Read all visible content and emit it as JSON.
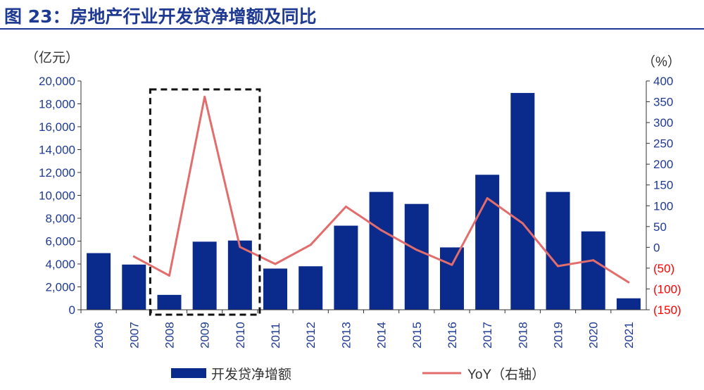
{
  "figure_title": "图 23：房地产行业开发贷净增额及同比",
  "chart_data": {
    "type": "bar",
    "categories": [
      "2006",
      "2007",
      "2008",
      "2009",
      "2010",
      "2011",
      "2012",
      "2013",
      "2014",
      "2015",
      "2016",
      "2017",
      "2018",
      "2019",
      "2020",
      "2021"
    ],
    "series": [
      {
        "name": "开发贷净增额",
        "type": "bar",
        "axis": "left",
        "color": "#0a2a8c",
        "values": [
          4950,
          3950,
          1300,
          5950,
          6050,
          3600,
          3800,
          7350,
          10300,
          9250,
          5450,
          11800,
          18950,
          10300,
          6850,
          1000
        ]
      },
      {
        "name": "YoY（右轴）",
        "type": "line",
        "axis": "right",
        "color": "#e26d6d",
        "values": [
          null,
          -22,
          -68,
          362,
          1,
          -40,
          6,
          98,
          41,
          -6,
          -42,
          118,
          58,
          -45,
          -31,
          -84
        ]
      }
    ],
    "ylabel": "（亿元）",
    "y2label": "（%）",
    "ylim": [
      0,
      20000
    ],
    "y2lim": [
      -150,
      400
    ],
    "y_ticks": [
      "20,000",
      "18,000",
      "16,000",
      "14,000",
      "12,000",
      "10,000",
      "8,000",
      "6,000",
      "4,000",
      "2,000",
      "0"
    ],
    "y2_ticks": [
      "400",
      "350",
      "300",
      "250",
      "200",
      "150",
      "100",
      "50",
      "0",
      "(50)",
      "(100)",
      "(150)"
    ],
    "tick_color": "#1f3a93",
    "neg_tick_color": "#ff0000",
    "highlight_categories": [
      "2008",
      "2010"
    ],
    "legend_position": "bottom"
  }
}
